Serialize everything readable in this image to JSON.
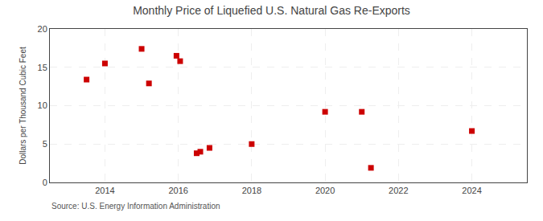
{
  "chart_data": {
    "type": "scatter",
    "title": "Monthly Price of Liquefied U.S. Natural Gas Re-Exports",
    "ylabel": "Dollars per Thousand Cubic Feet",
    "annotations": [
      "Source: U.S. Energy Information Administration"
    ],
    "x": [
      2013.5,
      2014.0,
      2015.0,
      2015.2,
      2015.95,
      2016.05,
      2016.5,
      2016.6,
      2016.85,
      2018.0,
      2020.0,
      2021.0,
      2021.25,
      2024.0
    ],
    "values": [
      13.4,
      15.5,
      17.4,
      12.9,
      16.5,
      15.8,
      3.8,
      4.0,
      4.5,
      5.0,
      9.2,
      9.2,
      1.9,
      6.7
    ],
    "color": "#cc0000",
    "marker": "square",
    "xlim": [
      2012.5,
      2025.5
    ],
    "ylim": [
      0,
      20
    ],
    "xticks": [
      2014,
      2016,
      2018,
      2020,
      2022,
      2024
    ],
    "yticks": [
      0,
      5,
      10,
      15,
      20
    ],
    "grid": true
  }
}
